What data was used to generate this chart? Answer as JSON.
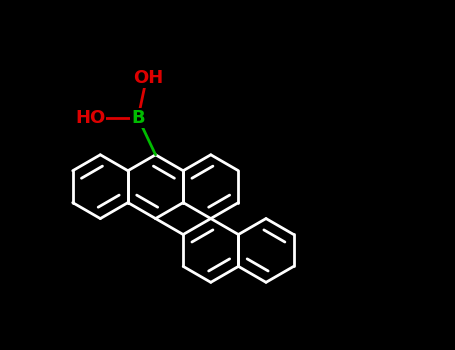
{
  "background": "#000000",
  "bond_color": "#ffffff",
  "bond_width": 2.0,
  "bond_color_B": "#00bb00",
  "bond_color_O": "#dd0000",
  "label_B": "B",
  "label_OH_top": "OH",
  "label_OH_left": "HO",
  "color_B": "#00bb00",
  "color_O": "#dd0000",
  "fontsize": 13,
  "dbo": 0.028
}
